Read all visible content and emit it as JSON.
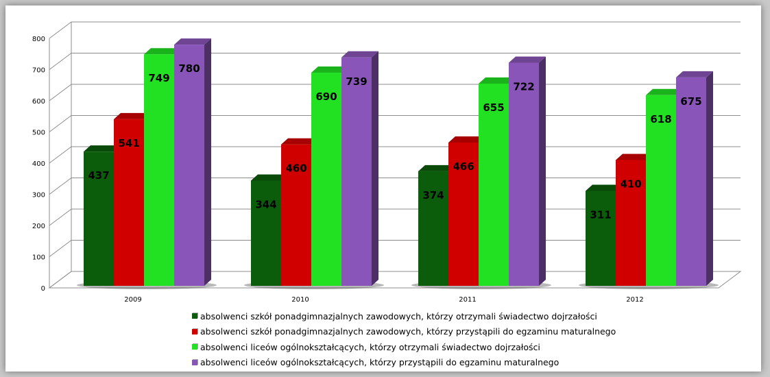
{
  "chart_data": {
    "type": "bar",
    "title": "",
    "xlabel": "",
    "ylabel": "",
    "categories": [
      "2009",
      "2010",
      "2011",
      "2012"
    ],
    "ylim": [
      0,
      800
    ],
    "yticks": [
      0,
      100,
      200,
      300,
      400,
      500,
      600,
      700,
      800
    ],
    "grid": true,
    "legend_position": "bottom",
    "series": [
      {
        "name": "absolwenci szkół ponadgimnazjalnych zawodowych, którzy otrzymali świadectwo dojrzałości",
        "color": "#0b5c0b",
        "values": [
          437,
          344,
          374,
          311
        ]
      },
      {
        "name": "absolwenci szkół ponadgimnazjalnych zawodowych, którzy przystąpili do egzaminu maturalnego",
        "color": "#d10000",
        "values": [
          541,
          460,
          466,
          410
        ]
      },
      {
        "name": "absolwenci liceów ogólnokształcących, którzy otrzymali świadectwo dojrzałości",
        "color": "#22e022",
        "values": [
          749,
          690,
          655,
          618
        ]
      },
      {
        "name": "absolwenci liceów ogólnokształcących, którzy przystąpili do egzaminu maturalnego",
        "color": "#8a55b8",
        "values": [
          780,
          739,
          722,
          675
        ]
      }
    ]
  }
}
